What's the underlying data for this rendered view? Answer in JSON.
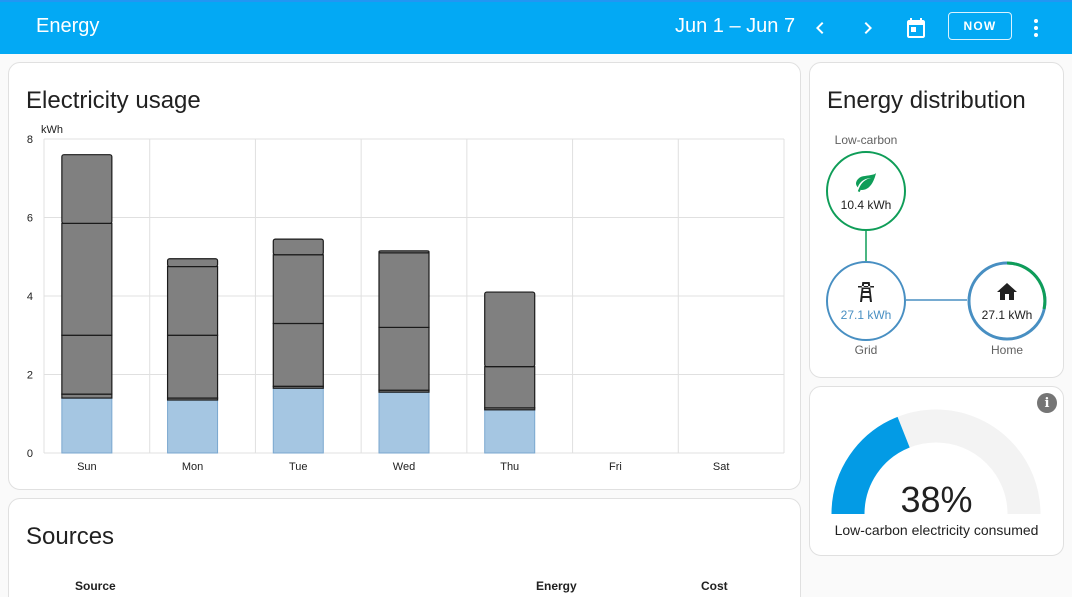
{
  "header": {
    "title": "Energy",
    "date_range": "Jun 1 – Jun 7",
    "now_label": "NOW"
  },
  "usage": {
    "title": "Electricity usage",
    "chart_data": {
      "type": "bar",
      "stacked": true,
      "ylabel": "kWh",
      "ylim": [
        0,
        8
      ],
      "yticks": [
        0,
        2,
        4,
        6,
        8
      ],
      "categories": [
        "Sun",
        "Mon",
        "Tue",
        "Wed",
        "Thu",
        "Fri",
        "Sat"
      ],
      "grid": true,
      "series": [
        {
          "color": "#a5c6e2",
          "values": [
            1.4,
            1.35,
            1.65,
            1.55,
            1.1,
            0,
            0
          ]
        },
        {
          "color": "#808080",
          "values": [
            0.1,
            0.05,
            0.05,
            0.05,
            0.05,
            0,
            0
          ]
        },
        {
          "color": "#808080",
          "values": [
            1.5,
            1.6,
            1.6,
            1.6,
            1.05,
            0,
            0
          ]
        },
        {
          "color": "#808080",
          "values": [
            2.85,
            1.75,
            1.75,
            1.9,
            0,
            0,
            0
          ]
        },
        {
          "color": "#808080",
          "values": [
            1.75,
            0.2,
            0.4,
            0.05,
            1.9,
            0,
            0
          ]
        }
      ]
    }
  },
  "distribution": {
    "title": "Energy distribution",
    "low_carbon": {
      "label": "Low-carbon",
      "value": "10.4 kWh",
      "icon": "leaf-icon",
      "color": "#0f9d58"
    },
    "grid": {
      "label": "Grid",
      "value": "27.1 kWh",
      "icon": "transmission-tower-icon",
      "color": "#488fc2"
    },
    "home": {
      "label": "Home",
      "value": "27.1 kWh",
      "icon": "home-icon",
      "color": "#488fc2"
    }
  },
  "gauge": {
    "value_text": "38%",
    "value": 38,
    "label": "Low-carbon electricity consumed",
    "fill_color": "#039be5",
    "track_color": "#f3f3f3"
  },
  "sources": {
    "title": "Sources",
    "columns": [
      "Source",
      "Energy",
      "Cost"
    ]
  }
}
